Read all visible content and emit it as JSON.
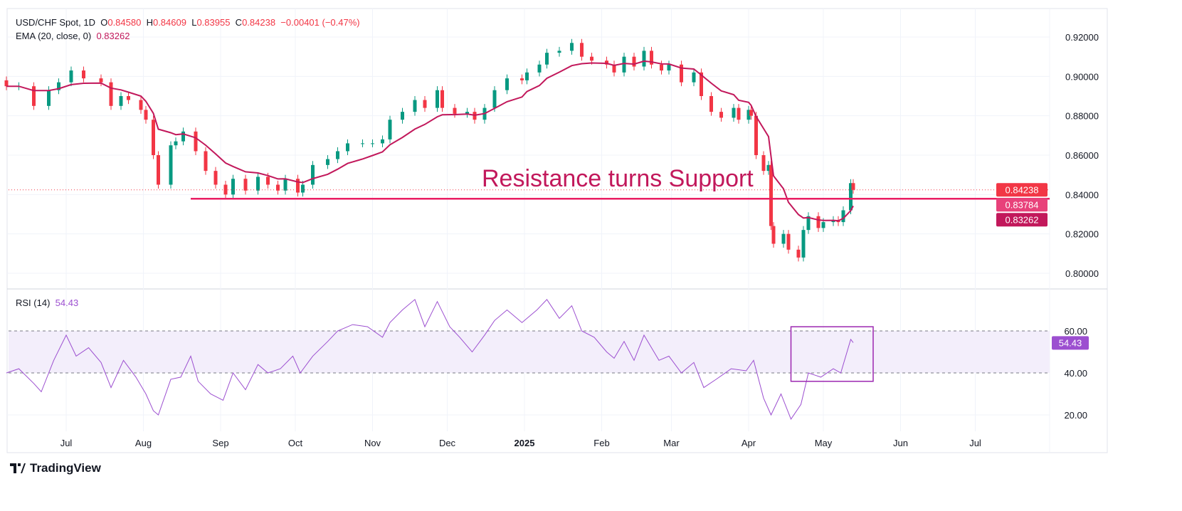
{
  "header": {
    "symbol": "USD/CHF Spot, 1D",
    "o_label": "O",
    "open": "0.84580",
    "h_label": "H",
    "high": "0.84609",
    "l_label": "L",
    "low": "0.83955",
    "c_label": "C",
    "close": "0.84238",
    "change": "−0.00401 (−0.47%)",
    "ema_label": "EMA (20, close, 0)",
    "ema_value": "0.83262",
    "rsi_label": "RSI (14)",
    "rsi_value": "54.43"
  },
  "branding": {
    "name": "TradingView"
  },
  "colors": {
    "up": "#089981",
    "down": "#f23645",
    "ema": "#c2185b",
    "support_line": "#e91e63",
    "rsi": "#9c4fd0",
    "rsi_band": "#f3eefb",
    "box": "#9c27b0"
  },
  "chart_data": [
    {
      "type": "candlestick",
      "title": "USD/CHF Spot, 1D",
      "ylim": [
        0.8,
        0.92
      ],
      "y_ticks": [
        "0.92000",
        "0.90000",
        "0.88000",
        "0.86000",
        "0.84000",
        "0.82000",
        "0.80000"
      ],
      "x_ticks": [
        "Jul",
        "Aug",
        "Sep",
        "Oct",
        "Nov",
        "Dec",
        "2025",
        "Feb",
        "Mar",
        "Apr",
        "May",
        "Jun",
        "Jul"
      ],
      "x_tick_dates": [
        "2024-07-01",
        "2024-08-01",
        "2024-09-01",
        "2024-10-01",
        "2024-11-01",
        "2024-12-01",
        "2025-01-01",
        "2025-02-01",
        "2025-03-01",
        "2025-04-01",
        "2025-05-01",
        "2025-06-01",
        "2025-07-01"
      ],
      "xlim": [
        "2024-06-07",
        "2025-07-25"
      ],
      "grid": true,
      "series": [
        {
          "name": "USD/CHF",
          "dates": [
            "2024-06-07",
            "2024-06-12",
            "2024-06-18",
            "2024-06-24",
            "2024-06-28",
            "2024-07-03",
            "2024-07-08",
            "2024-07-15",
            "2024-07-19",
            "2024-07-23",
            "2024-07-26",
            "2024-07-31",
            "2024-08-02",
            "2024-08-05",
            "2024-08-07",
            "2024-08-12",
            "2024-08-14",
            "2024-08-17",
            "2024-08-22",
            "2024-08-26",
            "2024-08-30",
            "2024-09-03",
            "2024-09-06",
            "2024-09-11",
            "2024-09-16",
            "2024-09-20",
            "2024-09-24",
            "2024-09-27",
            "2024-10-02",
            "2024-10-04",
            "2024-10-08",
            "2024-10-14",
            "2024-10-18",
            "2024-10-22",
            "2024-10-28",
            "2024-11-01",
            "2024-11-05",
            "2024-11-08",
            "2024-11-13",
            "2024-11-18",
            "2024-11-22",
            "2024-11-27",
            "2024-11-29",
            "2024-12-04",
            "2024-12-09",
            "2024-12-12",
            "2024-12-16",
            "2024-12-20",
            "2024-12-25",
            "2024-12-31",
            "2025-01-02",
            "2025-01-07",
            "2025-01-10",
            "2025-01-15",
            "2025-01-20",
            "2025-01-24",
            "2025-01-28",
            "2025-02-03",
            "2025-02-06",
            "2025-02-10",
            "2025-02-14",
            "2025-02-18",
            "2025-02-21",
            "2025-02-25",
            "2025-02-28",
            "2025-03-05",
            "2025-03-10",
            "2025-03-13",
            "2025-03-17",
            "2025-03-21",
            "2025-03-26",
            "2025-03-28",
            "2025-04-01",
            "2025-04-02",
            "2025-04-04",
            "2025-04-07",
            "2025-04-09",
            "2025-04-10",
            "2025-04-11",
            "2025-04-15",
            "2025-04-17",
            "2025-04-21",
            "2025-04-23",
            "2025-04-25",
            "2025-04-29",
            "2025-05-01",
            "2025-05-05",
            "2025-05-07",
            "2025-05-09",
            "2025-05-12",
            "2025-05-13"
          ],
          "close": [
            0.895,
            0.895,
            0.885,
            0.893,
            0.897,
            0.903,
            0.899,
            0.897,
            0.885,
            0.89,
            0.888,
            0.883,
            0.878,
            0.86,
            0.845,
            0.865,
            0.867,
            0.872,
            0.862,
            0.852,
            0.845,
            0.84,
            0.848,
            0.842,
            0.849,
            0.845,
            0.842,
            0.848,
            0.841,
            0.845,
            0.855,
            0.858,
            0.862,
            0.866,
            0.866,
            0.866,
            0.868,
            0.878,
            0.882,
            0.888,
            0.884,
            0.893,
            0.884,
            0.881,
            0.882,
            0.878,
            0.884,
            0.893,
            0.899,
            0.898,
            0.902,
            0.906,
            0.912,
            0.913,
            0.917,
            0.91,
            0.908,
            0.906,
            0.902,
            0.91,
            0.905,
            0.913,
            0.906,
            0.903,
            0.906,
            0.897,
            0.902,
            0.89,
            0.882,
            0.879,
            0.884,
            0.878,
            0.883,
            0.88,
            0.86,
            0.852,
            0.855,
            0.824,
            0.815,
            0.82,
            0.812,
            0.808,
            0.822,
            0.829,
            0.823,
            0.826,
            0.827,
            0.826,
            0.832,
            0.8458,
            0.84238
          ]
        }
      ],
      "overlays": {
        "ema": {
          "label": "EMA (20, close, 0)",
          "last": 0.83262
        },
        "support_level": 0.83784,
        "support_start": "2024-08-20",
        "annotation": "Resistance turns Support"
      },
      "price_labels": [
        "0.84238",
        "0.83784",
        "0.83262"
      ]
    },
    {
      "type": "line",
      "title": "RSI (14)",
      "ylim": [
        10,
        80
      ],
      "y_ticks": [
        "60.00",
        "40.00",
        "20.00"
      ],
      "band": [
        40,
        60
      ],
      "last_label": "54.43",
      "box": {
        "from": "2025-04-18",
        "to": "2025-05-21",
        "low": 36,
        "high": 62
      },
      "series": [
        {
          "name": "RSI (14)",
          "dates": [
            "2024-06-07",
            "2024-06-12",
            "2024-06-18",
            "2024-06-21",
            "2024-06-26",
            "2024-07-01",
            "2024-07-05",
            "2024-07-10",
            "2024-07-15",
            "2024-07-19",
            "2024-07-24",
            "2024-07-29",
            "2024-08-02",
            "2024-08-05",
            "2024-08-07",
            "2024-08-12",
            "2024-08-16",
            "2024-08-20",
            "2024-08-23",
            "2024-08-28",
            "2024-09-02",
            "2024-09-06",
            "2024-09-11",
            "2024-09-16",
            "2024-09-20",
            "2024-09-25",
            "2024-09-30",
            "2024-10-03",
            "2024-10-08",
            "2024-10-14",
            "2024-10-18",
            "2024-10-24",
            "2024-10-30",
            "2024-11-05",
            "2024-11-08",
            "2024-11-13",
            "2024-11-18",
            "2024-11-22",
            "2024-11-27",
            "2024-12-02",
            "2024-12-06",
            "2024-12-11",
            "2024-12-16",
            "2024-12-20",
            "2024-12-25",
            "2024-12-31",
            "2025-01-06",
            "2025-01-10",
            "2025-01-15",
            "2025-01-20",
            "2025-01-24",
            "2025-01-29",
            "2025-02-03",
            "2025-02-06",
            "2025-02-10",
            "2025-02-14",
            "2025-02-18",
            "2025-02-24",
            "2025-02-28",
            "2025-03-05",
            "2025-03-10",
            "2025-03-14",
            "2025-03-19",
            "2025-03-25",
            "2025-03-31",
            "2025-04-03",
            "2025-04-07",
            "2025-04-10",
            "2025-04-14",
            "2025-04-18",
            "2025-04-22",
            "2025-04-25",
            "2025-04-30",
            "2025-05-05",
            "2025-05-08",
            "2025-05-12",
            "2025-05-13"
          ],
          "values": [
            40,
            42,
            35,
            31,
            46,
            58,
            48,
            52,
            45,
            33,
            46,
            38,
            30,
            22,
            20,
            37,
            38,
            48,
            36,
            30,
            27,
            40,
            32,
            44,
            40,
            42,
            48,
            40,
            48,
            55,
            60,
            63,
            62,
            57,
            64,
            70,
            75,
            62,
            74,
            62,
            57,
            50,
            58,
            65,
            70,
            64,
            70,
            75,
            66,
            72,
            60,
            57,
            50,
            47,
            55,
            46,
            58,
            46,
            48,
            40,
            45,
            33,
            37,
            42,
            41,
            46,
            28,
            20,
            30,
            18,
            25,
            40,
            38,
            42,
            40,
            56,
            54.43
          ]
        }
      ]
    }
  ]
}
